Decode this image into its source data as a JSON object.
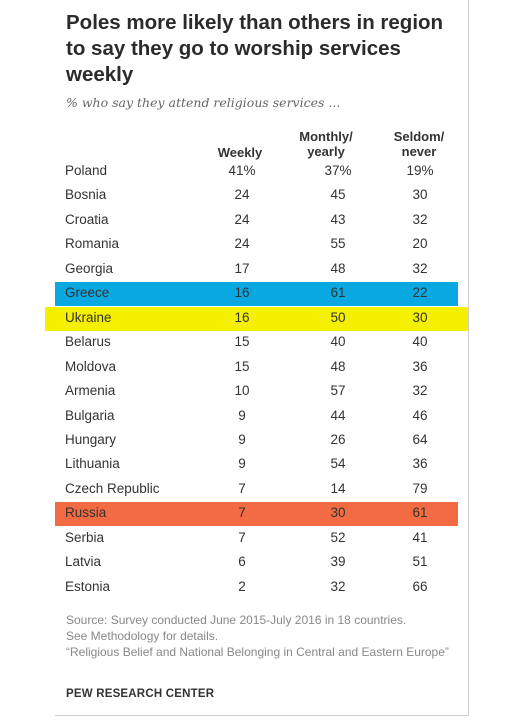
{
  "title": "Poles more likely than others in region to say they go to worship services weekly",
  "subtitle": "% who say they attend religious services ...",
  "columns": {
    "weekly": "Weekly",
    "monthly_line1": "Monthly/",
    "monthly_line2": "yearly",
    "seldom_line1": "Seldom/",
    "seldom_line2": "never"
  },
  "chart_data": {
    "type": "table",
    "title": "Poles more likely than others in region to say they go to worship services weekly",
    "subtitle": "% who say they attend religious services ...",
    "columns": [
      "Weekly",
      "Monthly/yearly",
      "Seldom/never"
    ],
    "rows": [
      {
        "country": "Poland",
        "weekly": "41%",
        "monthly": "37%",
        "seldom": "19%"
      },
      {
        "country": "Bosnia",
        "weekly": "24",
        "monthly": "45",
        "seldom": "30"
      },
      {
        "country": "Croatia",
        "weekly": "24",
        "monthly": "43",
        "seldom": "32"
      },
      {
        "country": "Romania",
        "weekly": "24",
        "monthly": "55",
        "seldom": "20"
      },
      {
        "country": "Georgia",
        "weekly": "17",
        "monthly": "48",
        "seldom": "32"
      },
      {
        "country": "Greece",
        "weekly": "16",
        "monthly": "61",
        "seldom": "22",
        "highlight": "#0aa8e0"
      },
      {
        "country": "Ukraine",
        "weekly": "16",
        "monthly": "50",
        "seldom": "30",
        "highlight": "#f5ef00"
      },
      {
        "country": "Belarus",
        "weekly": "15",
        "monthly": "40",
        "seldom": "40"
      },
      {
        "country": "Moldova",
        "weekly": "15",
        "monthly": "48",
        "seldom": "36"
      },
      {
        "country": "Armenia",
        "weekly": "10",
        "monthly": "57",
        "seldom": "32"
      },
      {
        "country": "Bulgaria",
        "weekly": "9",
        "monthly": "44",
        "seldom": "46"
      },
      {
        "country": "Hungary",
        "weekly": "9",
        "monthly": "26",
        "seldom": "64"
      },
      {
        "country": "Lithuania",
        "weekly": "9",
        "monthly": "54",
        "seldom": "36"
      },
      {
        "country": "Czech Republic",
        "weekly": "7",
        "monthly": "14",
        "seldom": "79"
      },
      {
        "country": "Russia",
        "weekly": "7",
        "monthly": "30",
        "seldom": "61",
        "highlight": "#f26b43"
      },
      {
        "country": "Serbia",
        "weekly": "7",
        "monthly": "52",
        "seldom": "41"
      },
      {
        "country": "Latvia",
        "weekly": "6",
        "monthly": "39",
        "seldom": "51"
      },
      {
        "country": "Estonia",
        "weekly": "2",
        "monthly": "32",
        "seldom": "66"
      }
    ]
  },
  "source_lines": [
    "Source: Survey conducted June 2015-July 2016 in 18 countries.",
    "See Methodology for details.",
    "“Religious Belief and National Belonging in Central and Eastern Europe”"
  ],
  "brand": "PEW RESEARCH CENTER"
}
